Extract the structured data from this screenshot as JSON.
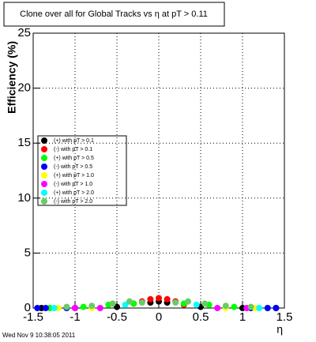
{
  "chart_data": {
    "type": "scatter",
    "title": "Clone  over all for Global Tracks vs η at pT > 0.11",
    "x_label": "η",
    "y_label": "Efficiency (%)",
    "timestamp": "Wed Nov  9 10:38:05 2011",
    "xlim": [
      -1.5,
      1.5
    ],
    "xticks": [
      -1.5,
      -1,
      -0.5,
      0,
      0.5,
      1,
      1.5
    ],
    "ylim": [
      0,
      25
    ],
    "yticks": [
      0,
      5,
      10,
      15,
      20,
      25
    ],
    "grid": true,
    "legend": "left",
    "series": [
      {
        "name": "(+) with pT > 0.1",
        "color": "#000000",
        "x": [
          -1.4,
          -1.0,
          -0.5,
          -0.1,
          0,
          0.1,
          0.5,
          1.0,
          1.4
        ],
        "values": [
          0,
          0,
          0.1,
          0.5,
          0.6,
          0.5,
          0.1,
          0,
          0
        ]
      },
      {
        "name": "(-) with pT > 0.1",
        "color": "#ff0000",
        "x": [
          -0.3,
          -0.2,
          -0.1,
          0,
          0.1,
          0.2,
          0.3
        ],
        "values": [
          0.4,
          0.6,
          0.8,
          0.9,
          0.8,
          0.6,
          0.3
        ]
      },
      {
        "name": "(+) with pT > 0.5",
        "color": "#00ff00",
        "x": [
          -1.3,
          -0.9,
          -0.6,
          -0.3,
          0.3,
          0.6,
          0.9,
          1.3
        ],
        "values": [
          0,
          0.1,
          0.3,
          0.4,
          0.4,
          0.3,
          0.1,
          0
        ]
      },
      {
        "name": "(-) with pT > 0.5",
        "color": "#0000ff",
        "x": [
          -1.45,
          -1.35,
          -1.1,
          1.1,
          1.3,
          1.4
        ],
        "values": [
          0,
          0,
          0,
          0,
          0,
          0
        ]
      },
      {
        "name": "(+) with pT > 1.0",
        "color": "#ffff00",
        "x": [
          -1.2,
          -0.8,
          0.8,
          1.15
        ],
        "values": [
          0,
          0,
          0,
          0
        ]
      },
      {
        "name": "(-) with pT > 1.0",
        "color": "#ff00ff",
        "x": [
          -1.0,
          -0.7,
          0.7,
          1.05
        ],
        "values": [
          0,
          0,
          0,
          0
        ]
      },
      {
        "name": "(+) with pT > 2.0",
        "color": "#00ffff",
        "x": [
          -1.25,
          -0.4,
          0.45,
          1.2
        ],
        "values": [
          0,
          0.3,
          0.3,
          0
        ]
      },
      {
        "name": "(-) with pT > 2.0",
        "color": "#66cc66",
        "x": [
          -1.1,
          -0.8,
          -0.55,
          -0.35,
          -0.2,
          0.2,
          0.35,
          0.55,
          0.8,
          1.1
        ],
        "values": [
          0.1,
          0.2,
          0.4,
          0.6,
          0.5,
          0.5,
          0.6,
          0.4,
          0.2,
          0.1
        ]
      }
    ]
  }
}
